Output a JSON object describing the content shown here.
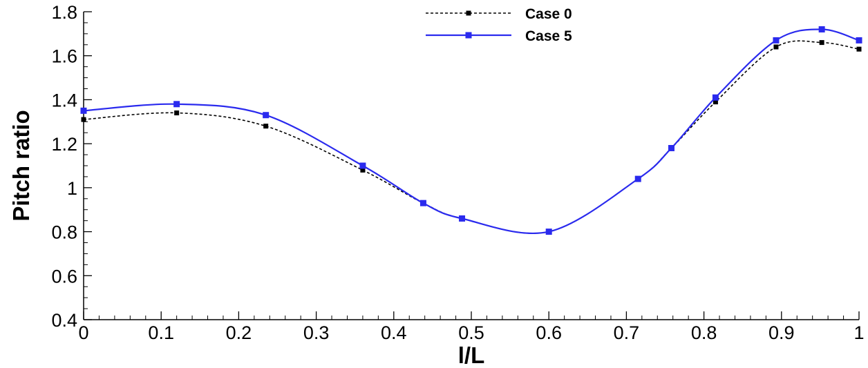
{
  "chart_data": {
    "type": "line",
    "xlabel": "l/L",
    "ylabel": "Pitch ratio",
    "xlim": [
      0,
      1
    ],
    "ylim": [
      0.4,
      1.8
    ],
    "x_ticks": [
      "0",
      "0.1",
      "0.2",
      "0.3",
      "0.4",
      "0.5",
      "0.6",
      "0.7",
      "0.8",
      "0.9",
      "1"
    ],
    "y_ticks": [
      "0.4",
      "0.6",
      "0.8",
      "1",
      "1.2",
      "1.4",
      "1.6",
      "1.8"
    ],
    "x_tick_values": [
      0,
      0.1,
      0.2,
      0.3,
      0.4,
      0.5,
      0.6,
      0.7,
      0.8,
      0.9,
      1
    ],
    "y_tick_values": [
      0.4,
      0.6,
      0.8,
      1.0,
      1.2,
      1.4,
      1.6,
      1.8
    ],
    "grid": false,
    "legend_position": "top-center",
    "series": [
      {
        "name": "Case 0",
        "color": "#000000",
        "line_style": "dashed",
        "marker": "square",
        "x": [
          0,
          0.12,
          0.235,
          0.36,
          0.438,
          0.488,
          0.6,
          0.715,
          0.758,
          0.815,
          0.893,
          0.952,
          1.0
        ],
        "y": [
          1.31,
          1.34,
          1.28,
          1.08,
          0.93,
          0.86,
          0.8,
          1.04,
          1.18,
          1.39,
          1.64,
          1.66,
          1.63
        ]
      },
      {
        "name": "Case 5",
        "color": "#2a2aee",
        "line_style": "solid",
        "marker": "square",
        "x": [
          0,
          0.12,
          0.235,
          0.36,
          0.438,
          0.488,
          0.6,
          0.715,
          0.758,
          0.815,
          0.893,
          0.952,
          1.0
        ],
        "y": [
          1.35,
          1.38,
          1.33,
          1.1,
          0.93,
          0.86,
          0.8,
          1.04,
          1.18,
          1.41,
          1.67,
          1.72,
          1.67
        ]
      }
    ]
  }
}
